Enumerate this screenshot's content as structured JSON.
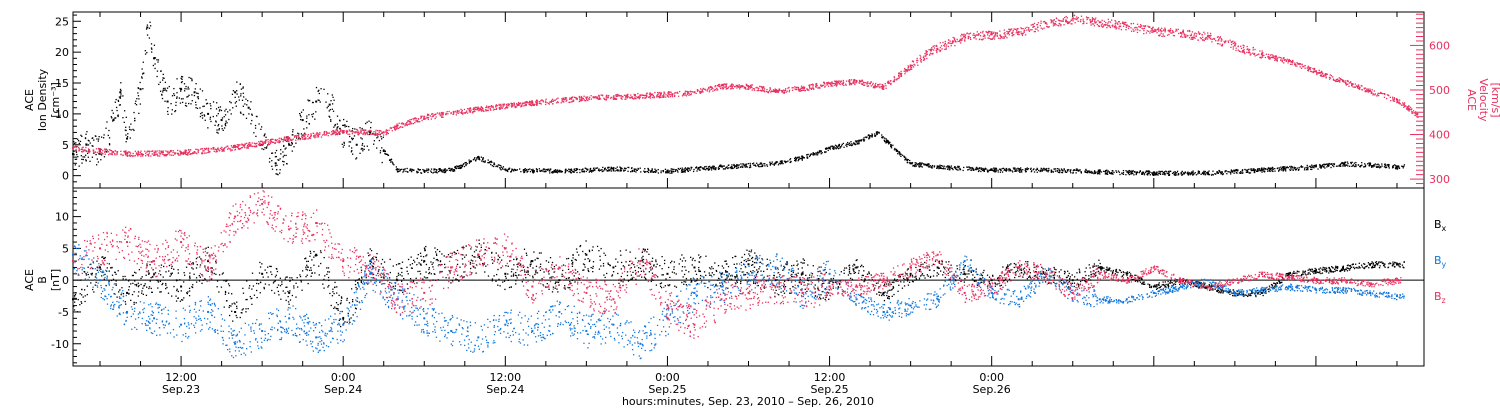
{
  "colors": {
    "axis": "#000000",
    "black_series": "#000000",
    "red_series": "#e8315f",
    "blue_series": "#1177dd",
    "zero_line": "#000000"
  },
  "chart_data": [
    {
      "type": "scatter",
      "panel": "top",
      "left_axis_label": [
        "ACE",
        "Ion Density",
        "[cm⁻³]"
      ],
      "right_axis_label": [
        "ACE",
        "Velocity",
        "[km/s]"
      ],
      "x_unit": "hours from Sep.23 00:00, 2010",
      "xlim": [
        4.0,
        104.0
      ],
      "ylim_left": [
        -2,
        26.5
      ],
      "ylim_right": [
        280,
        675
      ],
      "yticks_left": [
        0,
        5,
        10,
        15,
        20,
        25
      ],
      "yticks_right": [
        300,
        400,
        500,
        600
      ],
      "series": [
        {
          "axis": "left",
          "color": "black",
          "points": [
            [
              4.0,
              3.5
            ],
            [
              5.0,
              5.0
            ],
            [
              6.0,
              4.0
            ],
            [
              7.0,
              9.0
            ],
            [
              7.5,
              13.5
            ],
            [
              8.0,
              6.0
            ],
            [
              9.0,
              14.0
            ],
            [
              9.5,
              24.0
            ],
            [
              10.0,
              19.0
            ],
            [
              11.0,
              12.0
            ],
            [
              12.0,
              14.0
            ],
            [
              13.0,
              13.5
            ],
            [
              14.0,
              10.0
            ],
            [
              15.0,
              9.0
            ],
            [
              16.0,
              13.5
            ],
            [
              17.0,
              11.0
            ],
            [
              18.0,
              5.0
            ],
            [
              19.0,
              2.0
            ],
            [
              20.0,
              5.0
            ],
            [
              21.0,
              9.0
            ],
            [
              22.0,
              12.0
            ],
            [
              23.0,
              11.5
            ],
            [
              24.0,
              7.0
            ],
            [
              25.0,
              5.0
            ],
            [
              26.0,
              7.0
            ],
            [
              27.0,
              4.0
            ],
            [
              28.0,
              1.0
            ],
            [
              30.0,
              0.8
            ],
            [
              32.0,
              1.0
            ],
            [
              34.0,
              3.0
            ],
            [
              36.0,
              1.0
            ],
            [
              40.0,
              0.8
            ],
            [
              44.0,
              1.2
            ],
            [
              48.0,
              0.8
            ],
            [
              52.0,
              1.5
            ],
            [
              56.0,
              2.0
            ],
            [
              58.0,
              3.0
            ],
            [
              60.0,
              4.5
            ],
            [
              62.0,
              5.5
            ],
            [
              63.5,
              7.0
            ],
            [
              65.0,
              4.0
            ],
            [
              66.0,
              2.0
            ],
            [
              68.0,
              1.5
            ],
            [
              72.0,
              1.0
            ],
            [
              76.0,
              1.0
            ],
            [
              80.0,
              0.7
            ],
            [
              84.0,
              0.5
            ],
            [
              88.0,
              0.5
            ],
            [
              92.0,
              1.0
            ],
            [
              96.0,
              1.5
            ],
            [
              98.0,
              2.0
            ],
            [
              100.0,
              1.8
            ],
            [
              102.0,
              1.5
            ]
          ]
        },
        {
          "axis": "right",
          "color": "red",
          "points": [
            [
              4.0,
              370
            ],
            [
              8.0,
              358
            ],
            [
              12.0,
              360
            ],
            [
              16.0,
              372
            ],
            [
              20.0,
              392
            ],
            [
              24.0,
              408
            ],
            [
              27.0,
              405
            ],
            [
              28.0,
              420
            ],
            [
              30.0,
              440
            ],
            [
              34.0,
              458
            ],
            [
              38.0,
              472
            ],
            [
              42.0,
              483
            ],
            [
              46.0,
              488
            ],
            [
              50.0,
              495
            ],
            [
              52.0,
              510
            ],
            [
              54.0,
              508
            ],
            [
              56.0,
              498
            ],
            [
              58.0,
              505
            ],
            [
              60.0,
              515
            ],
            [
              62.0,
              520
            ],
            [
              64.0,
              508
            ],
            [
              66.0,
              555
            ],
            [
              67.5,
              590
            ],
            [
              70.0,
              620
            ],
            [
              72.0,
              625
            ],
            [
              74.0,
              630
            ],
            [
              76.0,
              650
            ],
            [
              78.0,
              660
            ],
            [
              80.0,
              652
            ],
            [
              82.0,
              645
            ],
            [
              84.0,
              632
            ],
            [
              86.0,
              628
            ],
            [
              88.0,
              620
            ],
            [
              90.0,
              600
            ],
            [
              92.0,
              580
            ],
            [
              94.0,
              565
            ],
            [
              96.0,
              542
            ],
            [
              98.0,
              520
            ],
            [
              100.0,
              498
            ],
            [
              102.0,
              478
            ],
            [
              103.5,
              445
            ]
          ]
        }
      ]
    },
    {
      "type": "scatter",
      "panel": "bottom",
      "left_axis_label": [
        "ACE",
        "B",
        "[nT]"
      ],
      "x_unit": "hours from Sep.23 00:00, 2010",
      "xlim": [
        4.0,
        104.0
      ],
      "ylim": [
        -13.5,
        14.5
      ],
      "yticks": [
        -10,
        -5,
        0,
        5,
        10
      ],
      "legend": [
        "Bx",
        "By",
        "Bz"
      ],
      "series": [
        {
          "name": "Bx",
          "color": "black",
          "points": [
            [
              4.0,
              -3.0
            ],
            [
              6.0,
              2.0
            ],
            [
              8.0,
              -2.0
            ],
            [
              10.0,
              1.0
            ],
            [
              12.0,
              -1.0
            ],
            [
              14.0,
              3.0
            ],
            [
              16.0,
              -5.0
            ],
            [
              18.0,
              1.0
            ],
            [
              20.0,
              -2.0
            ],
            [
              22.0,
              4.0
            ],
            [
              24.0,
              -6.0
            ],
            [
              26.0,
              3.0
            ],
            [
              28.0,
              0.0
            ],
            [
              30.0,
              3.0
            ],
            [
              32.0,
              2.0
            ],
            [
              34.0,
              4.0
            ],
            [
              36.0,
              1.0
            ],
            [
              38.0,
              3.0
            ],
            [
              40.0,
              0.0
            ],
            [
              42.0,
              4.0
            ],
            [
              44.0,
              2.0
            ],
            [
              46.0,
              3.0
            ],
            [
              48.0,
              1.0
            ],
            [
              50.0,
              2.0
            ],
            [
              52.0,
              1.0
            ],
            [
              54.0,
              2.5
            ],
            [
              56.0,
              0.0
            ],
            [
              58.0,
              1.0
            ],
            [
              60.0,
              -1.0
            ],
            [
              62.0,
              2.0
            ],
            [
              64.0,
              -2.0
            ],
            [
              66.0,
              1.0
            ],
            [
              68.0,
              2.0
            ],
            [
              70.0,
              1.0
            ],
            [
              72.0,
              0.0
            ],
            [
              74.0,
              2.0
            ],
            [
              76.0,
              1.0
            ],
            [
              78.0,
              0.0
            ],
            [
              80.0,
              2.0
            ],
            [
              82.0,
              1.0
            ],
            [
              84.0,
              -1.0
            ],
            [
              86.0,
              0.0
            ],
            [
              88.0,
              -1.0
            ],
            [
              90.0,
              -2.0
            ],
            [
              92.0,
              -2.0
            ],
            [
              94.0,
              1.0
            ],
            [
              96.0,
              1.5
            ],
            [
              98.0,
              2.0
            ],
            [
              100.0,
              2.5
            ],
            [
              102.0,
              2.5
            ]
          ]
        },
        {
          "name": "By",
          "color": "blue",
          "points": [
            [
              4.0,
              4.0
            ],
            [
              6.0,
              0.0
            ],
            [
              8.0,
              -5.0
            ],
            [
              10.0,
              -6.0
            ],
            [
              12.0,
              -7.0
            ],
            [
              14.0,
              -5.0
            ],
            [
              16.0,
              -10.0
            ],
            [
              18.0,
              -8.0
            ],
            [
              20.0,
              -6.0
            ],
            [
              22.0,
              -9.0
            ],
            [
              24.0,
              -7.0
            ],
            [
              26.0,
              1.0
            ],
            [
              28.0,
              -3.0
            ],
            [
              30.0,
              -6.0
            ],
            [
              32.0,
              -8.0
            ],
            [
              34.0,
              -9.0
            ],
            [
              36.0,
              -7.0
            ],
            [
              38.0,
              -8.0
            ],
            [
              40.0,
              -5.0
            ],
            [
              42.0,
              -8.0
            ],
            [
              44.0,
              -7.0
            ],
            [
              46.0,
              -10.0
            ],
            [
              48.0,
              -6.0
            ],
            [
              50.0,
              -2.0
            ],
            [
              52.0,
              -1.0
            ],
            [
              54.0,
              1.0
            ],
            [
              56.0,
              2.0
            ],
            [
              58.0,
              -2.0
            ],
            [
              60.0,
              1.0
            ],
            [
              62.0,
              -3.0
            ],
            [
              64.0,
              -5.0
            ],
            [
              66.0,
              -4.0
            ],
            [
              68.0,
              -3.0
            ],
            [
              70.0,
              3.0
            ],
            [
              72.0,
              -2.0
            ],
            [
              74.0,
              -3.0
            ],
            [
              76.0,
              1.0
            ],
            [
              78.0,
              -2.0
            ],
            [
              80.0,
              -3.0
            ],
            [
              82.0,
              -3.0
            ],
            [
              84.0,
              -2.0
            ],
            [
              86.0,
              -1.0
            ],
            [
              88.0,
              0.0
            ],
            [
              90.0,
              -2.0
            ],
            [
              92.0,
              -1.5
            ],
            [
              94.0,
              -1.0
            ],
            [
              96.0,
              -1.5
            ],
            [
              98.0,
              -1.5
            ],
            [
              100.0,
              -2.0
            ],
            [
              102.0,
              -2.5
            ]
          ]
        },
        {
          "name": "Bz",
          "color": "red",
          "points": [
            [
              4.0,
              3.0
            ],
            [
              6.0,
              5.0
            ],
            [
              8.0,
              6.0
            ],
            [
              10.0,
              3.0
            ],
            [
              12.0,
              6.0
            ],
            [
              14.0,
              2.0
            ],
            [
              16.0,
              10.0
            ],
            [
              18.0,
              12.0
            ],
            [
              20.0,
              8.0
            ],
            [
              22.0,
              9.0
            ],
            [
              24.0,
              3.0
            ],
            [
              26.0,
              2.0
            ],
            [
              28.0,
              -3.0
            ],
            [
              30.0,
              -2.0
            ],
            [
              32.0,
              2.0
            ],
            [
              34.0,
              4.0
            ],
            [
              36.0,
              5.0
            ],
            [
              38.0,
              -1.0
            ],
            [
              40.0,
              2.0
            ],
            [
              42.0,
              -2.0
            ],
            [
              44.0,
              -3.0
            ],
            [
              46.0,
              3.0
            ],
            [
              48.0,
              -4.0
            ],
            [
              50.0,
              -7.0
            ],
            [
              52.0,
              -3.0
            ],
            [
              54.0,
              -2.0
            ],
            [
              56.0,
              -1.0
            ],
            [
              58.0,
              -2.0
            ],
            [
              60.0,
              -1.0
            ],
            [
              62.0,
              -1.0
            ],
            [
              64.0,
              0.0
            ],
            [
              66.0,
              2.0
            ],
            [
              68.0,
              4.0
            ],
            [
              70.0,
              -2.0
            ],
            [
              72.0,
              -1.0
            ],
            [
              74.0,
              2.0
            ],
            [
              76.0,
              1.0
            ],
            [
              78.0,
              -2.0
            ],
            [
              80.0,
              1.0
            ],
            [
              82.0,
              0.0
            ],
            [
              84.0,
              2.0
            ],
            [
              86.0,
              0.0
            ],
            [
              88.0,
              -1.0
            ],
            [
              90.0,
              0.0
            ],
            [
              92.0,
              1.0
            ],
            [
              94.0,
              0.5
            ],
            [
              96.0,
              0.0
            ],
            [
              98.0,
              0.0
            ],
            [
              100.0,
              -0.5
            ],
            [
              102.0,
              0.0
            ]
          ]
        }
      ]
    }
  ],
  "x_ticks": [
    {
      "t": 12,
      "time": "12:00",
      "date": "Sep.23"
    },
    {
      "t": 24,
      "time": "0:00",
      "date": "Sep.24"
    },
    {
      "t": 36,
      "time": "12:00",
      "date": "Sep.24"
    },
    {
      "t": 48,
      "time": "0:00",
      "date": "Sep.25"
    },
    {
      "t": 60,
      "time": "12:00",
      "date": "Sep.25"
    },
    {
      "t": 72,
      "time": "0:00",
      "date": "Sep.26"
    }
  ],
  "xlabel": "hours:minutes, Sep. 23, 2010 – Sep. 26, 2010",
  "legend_labels": {
    "bx": "B",
    "bx_sub": "x",
    "by": "B",
    "by_sub": "y",
    "bz": "B",
    "bz_sub": "z"
  },
  "top_ylabel_left": {
    "l1": "ACE",
    "l2": "Ion Density",
    "l3": "[cm⁻³]"
  },
  "top_ylabel_right": {
    "l1": "ACE",
    "l2": "Velocity",
    "l3": "[km/s]"
  },
  "bottom_ylabel": {
    "l1": "ACE",
    "l2": "B",
    "l3": "[nT]"
  }
}
